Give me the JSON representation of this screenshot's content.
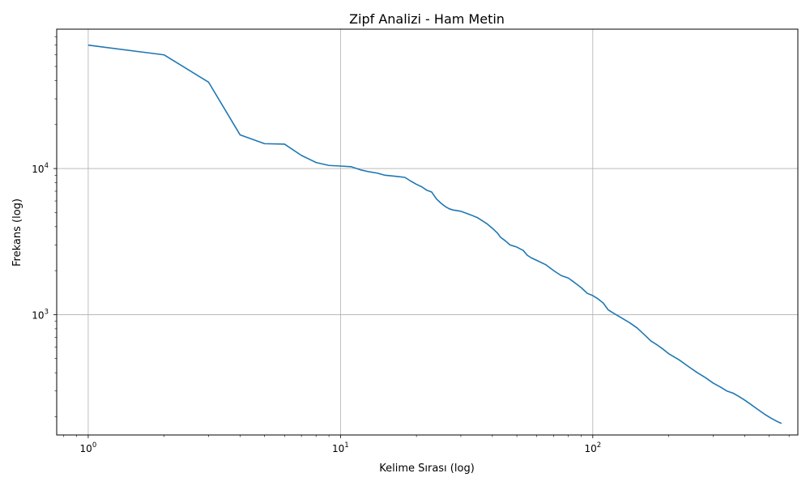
{
  "chart_data": {
    "type": "line",
    "title": "Zipf Analizi - Ham Metin",
    "xlabel": "Kelime Sırası (log)",
    "ylabel": "Frekans (log)",
    "xscale": "log",
    "yscale": "log",
    "xlim": [
      0.75,
      650
    ],
    "ylim": [
      150,
      90000
    ],
    "grid": true,
    "line_color": "#1f77b4",
    "xticks": [
      {
        "base": "10",
        "exp": "0",
        "value": 1
      },
      {
        "base": "10",
        "exp": "1",
        "value": 10
      },
      {
        "base": "10",
        "exp": "2",
        "value": 100
      }
    ],
    "yticks": [
      {
        "base": "10",
        "exp": "3",
        "value": 1000
      },
      {
        "base": "10",
        "exp": "4",
        "value": 10000
      }
    ],
    "series": [
      {
        "x": [
          1,
          2,
          3,
          4,
          5,
          6,
          7,
          8,
          9,
          10,
          11,
          12,
          13,
          14,
          15,
          16,
          17,
          18,
          19,
          20,
          21,
          22,
          23,
          24,
          25,
          26,
          27,
          28,
          30,
          32,
          33,
          35,
          38,
          40,
          42,
          43,
          45,
          47,
          50,
          53,
          55,
          57,
          60,
          65,
          70,
          75,
          80,
          85,
          90,
          95,
          100,
          105,
          110,
          115,
          120,
          130,
          140,
          150,
          160,
          170,
          180,
          190,
          200,
          220,
          240,
          260,
          280,
          300,
          320,
          340,
          360,
          380,
          400,
          420,
          450,
          480,
          510,
          540,
          560
        ],
        "y": [
          70000,
          60000,
          39000,
          17000,
          14800,
          14700,
          12300,
          11000,
          10500,
          10400,
          10300,
          9800,
          9500,
          9300,
          9000,
          8900,
          8800,
          8700,
          8200,
          7800,
          7500,
          7100,
          6900,
          6200,
          5800,
          5500,
          5300,
          5200,
          5100,
          4900,
          4800,
          4600,
          4200,
          3900,
          3600,
          3400,
          3200,
          3000,
          2900,
          2750,
          2550,
          2450,
          2350,
          2200,
          2000,
          1850,
          1780,
          1650,
          1530,
          1400,
          1350,
          1280,
          1200,
          1080,
          1030,
          950,
          880,
          810,
          730,
          660,
          620,
          580,
          540,
          490,
          440,
          400,
          370,
          340,
          320,
          300,
          290,
          275,
          260,
          245,
          225,
          208,
          195,
          185,
          180
        ]
      }
    ]
  }
}
